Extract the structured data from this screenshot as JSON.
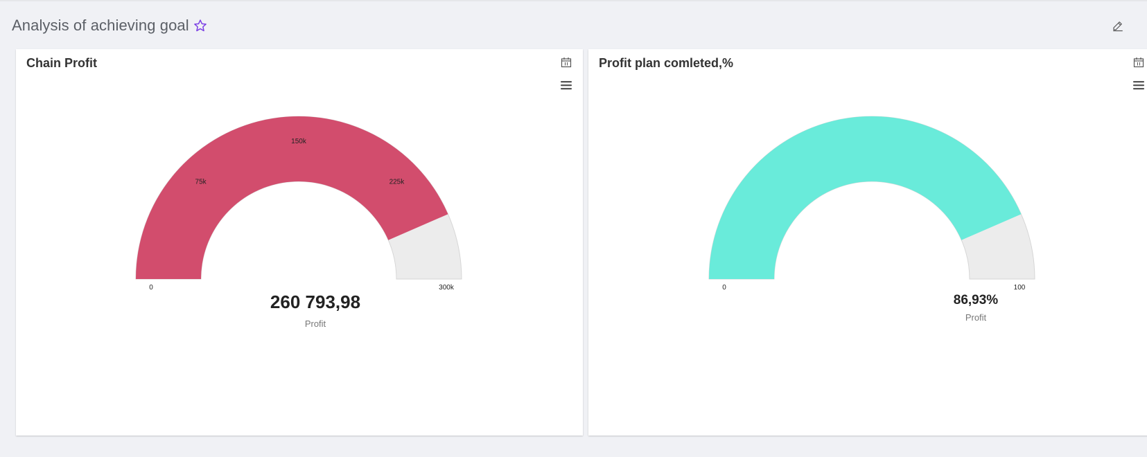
{
  "page": {
    "title": "Analysis of achieving goal",
    "icons": {
      "favorite": "star-icon",
      "edit": "pencil-icon"
    },
    "accent": "#7b3fe4"
  },
  "panels": [
    {
      "title": "Chain Profit",
      "icons": {
        "calendar": "calendar-icon",
        "menu": "hamburger-menu-icon"
      },
      "value_text": "260 793,98",
      "caption": "Profit",
      "color": "#d24d6d",
      "track_color": "#ececec"
    },
    {
      "title": "Profit plan comleted,%",
      "icons": {
        "calendar": "calendar-icon",
        "menu": "hamburger-menu-icon"
      },
      "value_text": "86,93%",
      "caption": "Profit",
      "color": "#69ebda",
      "track_color": "#ececec"
    }
  ],
  "chart_data": [
    {
      "type": "gauge",
      "title": "Chain Profit",
      "value": 260793.98,
      "min": 0,
      "max": 300000,
      "min_label": "0",
      "max_label": "300k",
      "tick_labels": [
        {
          "value": 75000,
          "label": "75k"
        },
        {
          "value": 150000,
          "label": "150k"
        },
        {
          "value": 225000,
          "label": "225k"
        }
      ],
      "label": "Profit"
    },
    {
      "type": "gauge",
      "title": "Profit plan comleted,%",
      "value": 86.93,
      "min": 0,
      "max": 100,
      "min_label": "0",
      "max_label": "100",
      "tick_labels": [],
      "label": "Profit"
    }
  ]
}
